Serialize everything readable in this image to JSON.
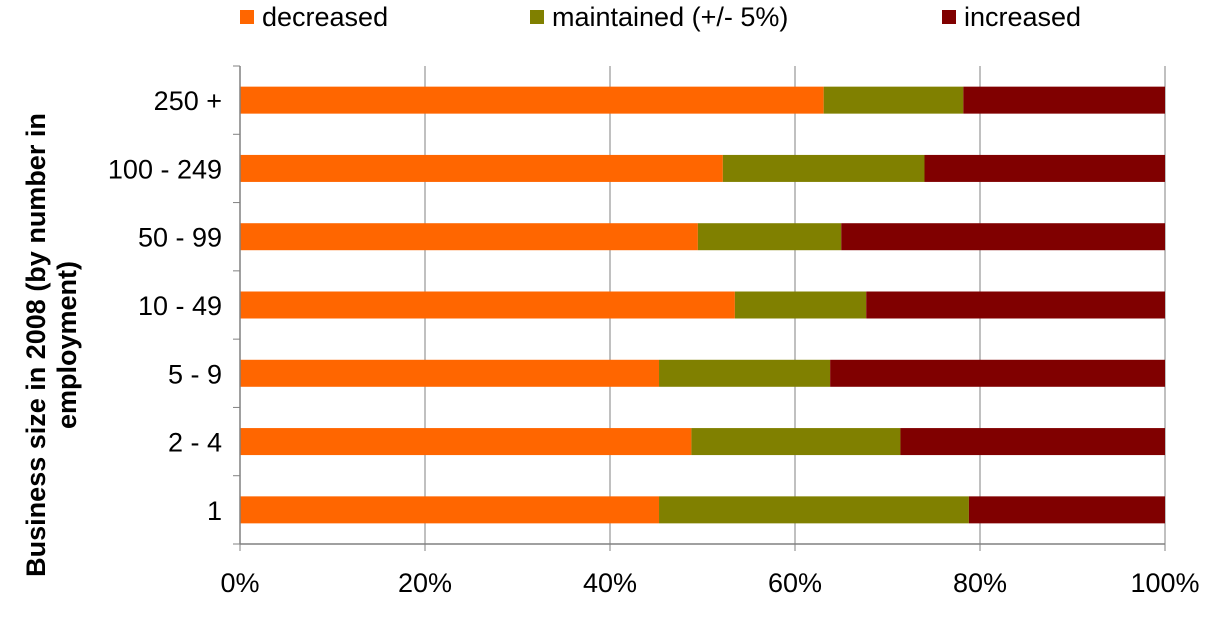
{
  "chart_data": {
    "type": "bar",
    "orientation": "horizontal",
    "stacked": "percent",
    "title": "",
    "xlabel": "",
    "ylabel": "Business size in 2008 (by number in employment)",
    "categories": [
      "1",
      "2 - 4",
      "5 - 9",
      "10 - 49",
      "50 - 99",
      "100 - 249",
      "250 +"
    ],
    "series": [
      {
        "name": "decreased",
        "color": "#ff6600",
        "values": [
          45.3,
          48.8,
          45.3,
          53.5,
          49.5,
          52.2,
          63.1
        ]
      },
      {
        "name": "maintained (+/- 5%)",
        "color": "#808000",
        "values": [
          33.5,
          22.6,
          18.5,
          14.2,
          15.5,
          21.8,
          15.1
        ]
      },
      {
        "name": "increased",
        "color": "#800000",
        "values": [
          21.2,
          28.6,
          36.2,
          32.3,
          35.0,
          26.0,
          21.8
        ]
      }
    ],
    "xlim": [
      0,
      100
    ],
    "xticks": [
      "0%",
      "20%",
      "40%",
      "60%",
      "80%",
      "100%"
    ],
    "grid": "vertical",
    "legend_position": "top"
  }
}
